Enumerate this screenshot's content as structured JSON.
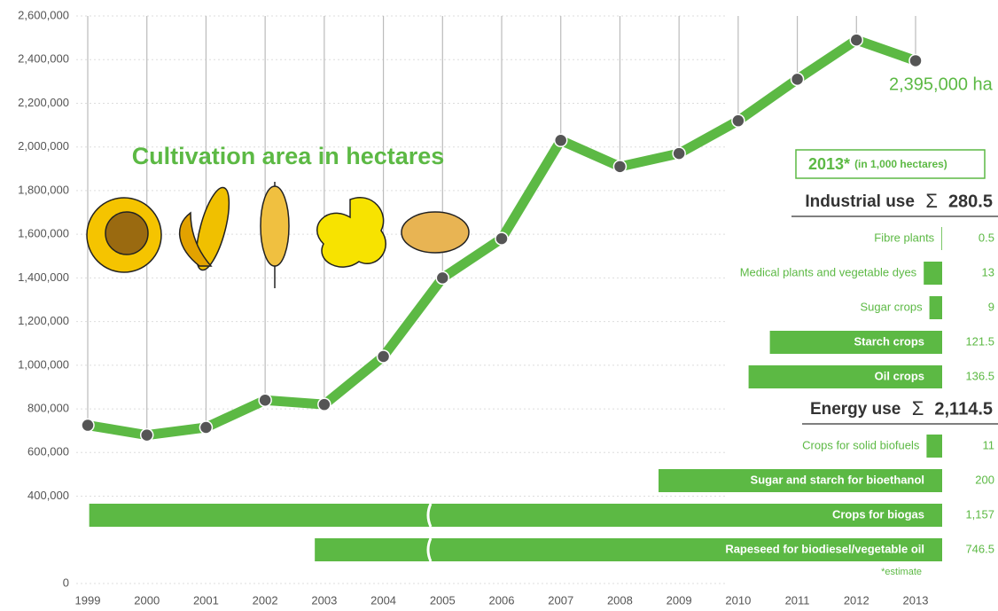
{
  "chart_data": [
    {
      "type": "line",
      "title": "Cultivation area in hectares",
      "color": "#5cb944",
      "x": [
        1999,
        2000,
        2001,
        2002,
        2003,
        2004,
        2005,
        2006,
        2007,
        2008,
        2009,
        2010,
        2011,
        2012,
        2013
      ],
      "values": [
        725000,
        680000,
        715000,
        840000,
        820000,
        1040000,
        1400000,
        1580000,
        2030000,
        1910000,
        1970000,
        2120000,
        2310000,
        2490000,
        2395000
      ],
      "annotation": "2,395,000 ha",
      "xlim": [
        1999,
        2013
      ],
      "ylim": [
        0,
        2600000
      ],
      "yticks": [
        0,
        {
          "value": 400000,
          "label": "400,000"
        },
        {
          "value": 600000,
          "label": "600,000"
        },
        {
          "value": 800000,
          "label": "800,000"
        },
        {
          "value": 1000000,
          "label": "1,000,000"
        },
        {
          "value": 1200000,
          "label": "1,200,000"
        },
        {
          "value": 1400000,
          "label": "1,400,000"
        },
        {
          "value": 1600000,
          "label": "1,600,000"
        },
        {
          "value": 1800000,
          "label": "1,800,000"
        },
        {
          "value": 2000000,
          "label": "2,000,000"
        },
        {
          "value": 2200000,
          "label": "2,200,000"
        },
        {
          "value": 2400000,
          "label": "2,400,000"
        },
        {
          "value": 2600000,
          "label": "2,600,000"
        }
      ],
      "grid": true
    },
    {
      "type": "bar",
      "orientation": "horizontal",
      "title": "2013*",
      "subtitle": "(in 1,000 hectares)",
      "color": "#5cb944",
      "footnote": "*estimate",
      "groups": [
        {
          "name": "Industrial use",
          "total": "280.5",
          "categories": [
            "Fibre plants",
            "Medical plants and vegetable dyes",
            "Sugar crops",
            "Starch crops",
            "Oil crops"
          ],
          "values": [
            0.5,
            13,
            9,
            121.5,
            136.5
          ],
          "value_labels": [
            "0.5",
            "13",
            "9",
            "121.5",
            "136.5"
          ]
        },
        {
          "name": "Energy use",
          "total": "2,114.5",
          "categories": [
            "Crops for solid biofuels",
            "Sugar and starch for bioethanol",
            "Crops for biogas",
            "Rapeseed for biodiesel/vegetable oil"
          ],
          "values": [
            11,
            200,
            1157,
            746.5
          ],
          "value_labels": [
            "11",
            "200",
            "1,157",
            "746.5"
          ]
        }
      ]
    }
  ]
}
